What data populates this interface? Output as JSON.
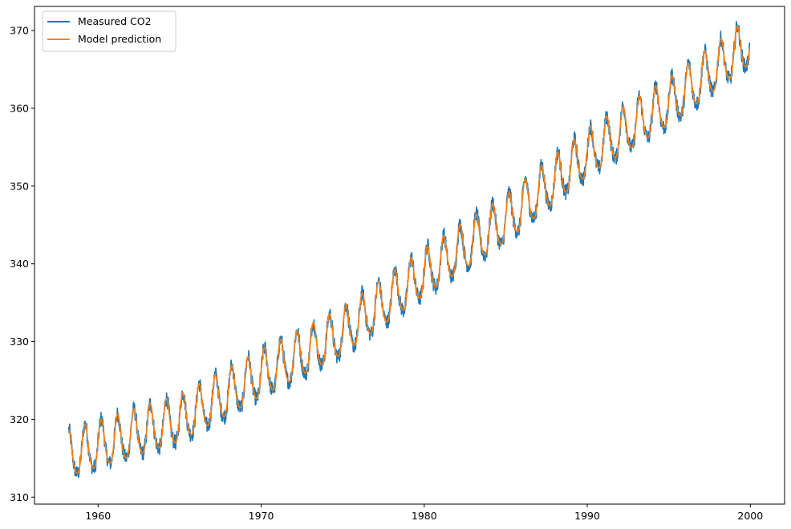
{
  "chart_data": {
    "type": "line",
    "title": "",
    "xlabel": "",
    "ylabel": "",
    "xlim": [
      1956.1,
      2002.1
    ],
    "ylim": [
      309.1,
      373.1
    ],
    "x_ticks": [
      1960,
      1970,
      1980,
      1990,
      2000
    ],
    "x_tick_labels": [
      "1960",
      "1970",
      "1980",
      "1990",
      "2000"
    ],
    "y_ticks": [
      310,
      320,
      330,
      340,
      350,
      360,
      370
    ],
    "y_tick_labels": [
      "310",
      "320",
      "330",
      "340",
      "350",
      "360",
      "370"
    ],
    "grid": false,
    "legend": {
      "position": "top-left",
      "entries": [
        "Measured CO2",
        "Model prediction"
      ]
    },
    "series": [
      {
        "name": "Measured CO2",
        "color": "#1f77b4",
        "x_range": [
          1958.2,
          1999.95
        ],
        "trend": [
          [
            1958.2,
            315.3
          ],
          [
            1965,
            319.8
          ],
          [
            1970,
            325.6
          ],
          [
            1975,
            331.0
          ],
          [
            1980,
            338.6
          ],
          [
            1985,
            345.5
          ],
          [
            1990,
            354.0
          ],
          [
            1995,
            360.5
          ],
          [
            1999.95,
            368.3
          ]
        ],
        "seasonal_amplitude": 3.0,
        "noise": 1.0
      },
      {
        "name": "Model prediction",
        "color": "#ff7f0e",
        "x_range": [
          1958.2,
          1999.95
        ],
        "trend": [
          [
            1958.2,
            315.3
          ],
          [
            1965,
            319.8
          ],
          [
            1970,
            325.6
          ],
          [
            1975,
            331.0
          ],
          [
            1980,
            338.6
          ],
          [
            1985,
            345.5
          ],
          [
            1990,
            354.0
          ],
          [
            1995,
            360.5
          ],
          [
            1999.95,
            368.3
          ]
        ],
        "seasonal_amplitude": 3.0
      }
    ]
  }
}
